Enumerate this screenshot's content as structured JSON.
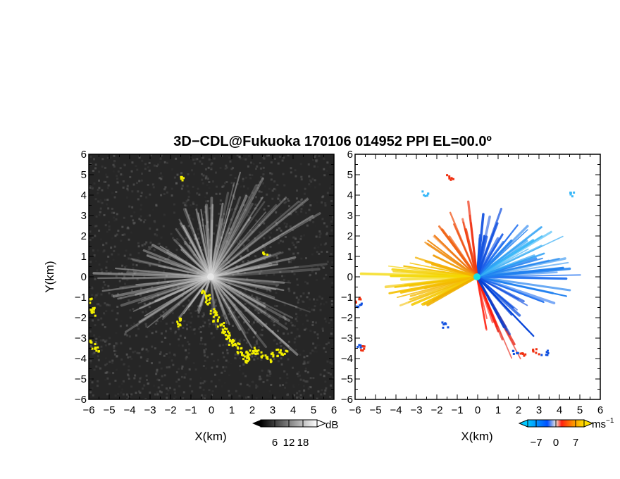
{
  "chart_data": {
    "type": "heatmap",
    "title": "3D−CDL@Fukuoka 170106 014952 PPI EL=00.0º",
    "panels": [
      {
        "name": "reflectivity",
        "xlabel": "X(km)",
        "ylabel": "Y(km)",
        "xlim": [
          -6,
          6
        ],
        "ylim": [
          -6,
          6
        ],
        "xticks": [
          "−6",
          "−5",
          "−4",
          "−3",
          "−2",
          "−1",
          "0",
          "1",
          "2",
          "3",
          "4",
          "5",
          "6"
        ],
        "yticks": [
          "6",
          "5",
          "4",
          "3",
          "2",
          "1",
          "0",
          "−1",
          "−2",
          "−3",
          "−4",
          "−5",
          "−6"
        ],
        "colorbar": {
          "unit": "dB",
          "ticks": [
            "6",
            "12",
            "18"
          ],
          "range": [
            0,
            24
          ]
        },
        "colors": {
          "background": "#222222",
          "echo": "#dddddd",
          "highlight": "#f4f000"
        }
      },
      {
        "name": "doppler-velocity",
        "xlabel": "X(km)",
        "ylabel": "",
        "xlim": [
          -6,
          6
        ],
        "ylim": [
          -6,
          6
        ],
        "xticks": [
          "−6",
          "−5",
          "−4",
          "−3",
          "−2",
          "−1",
          "0",
          "1",
          "2",
          "3",
          "4",
          "5",
          "6"
        ],
        "yticks": [
          "6",
          "5",
          "4",
          "3",
          "2",
          "1",
          "0",
          "−1",
          "−2",
          "−3",
          "−4",
          "−5",
          "−6"
        ],
        "colorbar": {
          "unit": "ms",
          "unit_exp": "−1",
          "ticks": [
            "−7",
            "0",
            "7"
          ],
          "range": [
            -10,
            10
          ]
        },
        "colors": {
          "background": "#ffffff",
          "approach": "#1e7ff0",
          "recede": "#f03010",
          "far_recede": "#f4d000"
        }
      }
    ]
  }
}
